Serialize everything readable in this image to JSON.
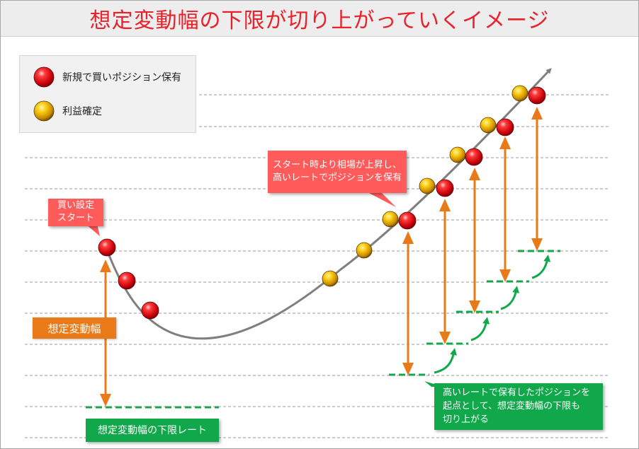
{
  "title": "想定変動幅の下限が切り上がっていくイメージ",
  "legend": {
    "new_position": "新規で買いポジション保有",
    "take_profit": "利益確定"
  },
  "callouts": {
    "start_line1": "買い設定",
    "start_line2": "スタート",
    "rise_line1": "スタート時より相場が上昇し、",
    "rise_line2": "高いレートでポジションを保有",
    "raise_line1": "高いレートで保有したポジションを",
    "raise_line2": "起点として、想定変動幅の下限も",
    "raise_line3": "切り上がる"
  },
  "labels": {
    "range": "想定変動幅",
    "lower_limit": "想定変動幅の下限レート"
  },
  "colors": {
    "red_ball": "#e4141b",
    "gold_ball": "#e6a800",
    "arrow_orange": "#ea7a17",
    "dash_green": "#10a84a",
    "curve_gray": "#7f7f7f",
    "callout_red": "#ff5b5b",
    "title_red": "#e8212b"
  }
}
